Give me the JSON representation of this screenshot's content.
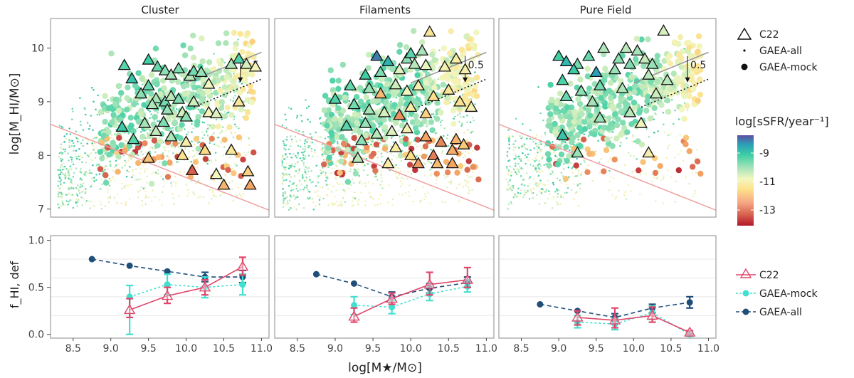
{
  "chart_data": [
    {
      "type": "scatter",
      "panel_titles": [
        "Cluster",
        "Filaments",
        "Pure Field"
      ],
      "xlabel": "log[M★/M⊙]",
      "ylabel": "log[M_HI/M⊙]",
      "xlim": [
        8.2,
        11.1
      ],
      "ylim": [
        6.85,
        10.55
      ],
      "xticks": [
        "8.5",
        "9.0",
        "9.5",
        "10.0",
        "10.5",
        "11.0"
      ],
      "yticks": [
        "7",
        "8",
        "9",
        "10"
      ],
      "annotation": "0.5",
      "ref_lines": {
        "grey_main_sequence": {
          "x1": 10.0,
          "y1": 9.35,
          "x2": 11.0,
          "y2": 9.92
        },
        "dotted_offset": {
          "x1": 10.1,
          "y1": 8.9,
          "x2": 11.0,
          "y2": 9.42
        },
        "red_threshold": {
          "x1": 8.2,
          "y1": 8.58,
          "x2": 11.1,
          "y2": 6.98
        }
      },
      "colorbar": {
        "label": "log[sSFR/year⁻¹]",
        "ticks": [
          "-9",
          "-11",
          "-13"
        ],
        "range": [
          -14.2,
          -7.9
        ]
      },
      "legend": [
        "C22",
        "GAEA-all",
        "GAEA-mock"
      ],
      "c22_points": [
        [
          [
            9.18,
            9.68,
            -9.8
          ],
          [
            9.28,
            9.43,
            -9.4
          ],
          [
            9.5,
            9.78,
            -9.6
          ],
          [
            9.62,
            9.65,
            -9.9
          ],
          [
            9.72,
            9.58,
            -10.2
          ],
          [
            9.8,
            9.5,
            -10.4
          ],
          [
            9.9,
            9.62,
            -10.1
          ],
          [
            10.05,
            9.48,
            -10.6
          ],
          [
            10.1,
            9.57,
            -10.0
          ],
          [
            10.2,
            9.55,
            -10.3
          ],
          [
            10.6,
            9.7,
            -10.5
          ],
          [
            10.7,
            9.8,
            -9.7
          ],
          [
            10.8,
            9.7,
            -10.9
          ],
          [
            10.92,
            9.65,
            -11.3
          ],
          [
            10.3,
            9.33,
            -11.2
          ],
          [
            9.5,
            9.3,
            -9.9
          ],
          [
            9.4,
            9.15,
            -10.2
          ],
          [
            9.6,
            9.06,
            -10.4
          ],
          [
            9.72,
            9.0,
            -10.0
          ],
          [
            9.8,
            9.1,
            -10.6
          ],
          [
            9.9,
            9.05,
            -10.1
          ],
          [
            10.1,
            9.0,
            -10.8
          ],
          [
            9.55,
            8.95,
            -10.5
          ],
          [
            9.75,
            8.85,
            -10.3
          ],
          [
            9.95,
            8.8,
            -10.9
          ],
          [
            10.0,
            8.72,
            -10.2
          ],
          [
            9.15,
            8.53,
            -9.5
          ],
          [
            9.3,
            8.3,
            -9.8
          ],
          [
            9.45,
            8.6,
            -10.4
          ],
          [
            9.6,
            8.45,
            -10.7
          ],
          [
            9.7,
            8.62,
            -10.1
          ],
          [
            9.8,
            8.35,
            -10.5
          ],
          [
            10.3,
            8.8,
            -11.3
          ],
          [
            10.4,
            8.78,
            -11.0
          ],
          [
            10.7,
            9.0,
            -11.8
          ],
          [
            10.0,
            8.25,
            -11.6
          ],
          [
            10.25,
            8.1,
            -12.1
          ],
          [
            9.95,
            8.0,
            -11.9
          ],
          [
            9.5,
            7.95,
            -12.4
          ],
          [
            10.08,
            7.72,
            -13.5
          ],
          [
            10.4,
            7.65,
            -11.2
          ],
          [
            10.5,
            7.45,
            -12.6
          ],
          [
            10.82,
            7.7,
            -12.2
          ],
          [
            10.85,
            7.45,
            -12.8
          ],
          [
            10.6,
            8.1,
            -11.8
          ]
        ],
        [
          [
            9.55,
            9.85,
            -8.4
          ],
          [
            9.7,
            9.75,
            -9.1
          ],
          [
            9.95,
            9.8,
            -10.2
          ],
          [
            10.0,
            9.9,
            -9.8
          ],
          [
            10.15,
            9.95,
            -10.4
          ],
          [
            10.25,
            10.3,
            -11.8
          ],
          [
            9.4,
            9.5,
            -9.6
          ],
          [
            9.6,
            9.55,
            -10.1
          ],
          [
            9.85,
            9.6,
            -11.0
          ],
          [
            10.05,
            9.7,
            -10.6
          ],
          [
            10.2,
            9.68,
            -11.1
          ],
          [
            10.45,
            9.65,
            -11.4
          ],
          [
            10.6,
            9.8,
            -11.6
          ],
          [
            10.72,
            9.6,
            -11.5
          ],
          [
            9.2,
            9.3,
            -9.9
          ],
          [
            9.45,
            9.25,
            -10.3
          ],
          [
            9.6,
            9.15,
            -12.5
          ],
          [
            9.8,
            9.32,
            -10.8
          ],
          [
            9.95,
            9.2,
            -11.2
          ],
          [
            10.1,
            9.3,
            -11.5
          ],
          [
            10.3,
            9.1,
            -12.0
          ],
          [
            10.5,
            9.22,
            -11.8
          ],
          [
            9.0,
            9.05,
            -9.7
          ],
          [
            9.25,
            8.95,
            -10.0
          ],
          [
            9.45,
            8.85,
            -10.4
          ],
          [
            9.65,
            8.8,
            -10.9
          ],
          [
            9.85,
            8.75,
            -13.0
          ],
          [
            10.0,
            8.9,
            -11.6
          ],
          [
            10.2,
            8.78,
            -12.2
          ],
          [
            10.65,
            9.0,
            -11.9
          ],
          [
            10.8,
            8.9,
            -11.4
          ],
          [
            9.15,
            8.55,
            -9.8
          ],
          [
            9.4,
            8.6,
            -10.3
          ],
          [
            9.55,
            8.4,
            -10.6
          ],
          [
            9.75,
            8.45,
            -11.0
          ],
          [
            9.95,
            8.5,
            -11.4
          ],
          [
            10.2,
            8.35,
            -12.8
          ],
          [
            10.4,
            8.25,
            -13.1
          ],
          [
            10.6,
            8.3,
            -12.6
          ],
          [
            9.35,
            8.28,
            -10.2
          ],
          [
            9.8,
            8.15,
            -11.7
          ],
          [
            10.0,
            8.0,
            -12.0
          ],
          [
            10.3,
            8.0,
            -13.2
          ],
          [
            10.55,
            8.1,
            -12.7
          ],
          [
            10.7,
            8.2,
            -12.3
          ],
          [
            9.7,
            7.85,
            -11.6
          ],
          [
            10.1,
            7.85,
            -12.9
          ],
          [
            10.35,
            7.85,
            -12.5
          ],
          [
            10.55,
            7.85,
            -12.8
          ],
          [
            9.3,
            7.95,
            -10.6
          ]
        ],
        [
          [
            9.0,
            9.85,
            -9.6
          ],
          [
            9.1,
            9.75,
            -9.2
          ],
          [
            9.25,
            9.7,
            -10.0
          ],
          [
            9.4,
            9.85,
            -9.9
          ],
          [
            9.6,
            10.0,
            -10.5
          ],
          [
            9.8,
            9.8,
            -10.2
          ],
          [
            9.9,
            10.0,
            -10.6
          ],
          [
            10.05,
            9.95,
            -10.4
          ],
          [
            10.15,
            9.8,
            -10.7
          ],
          [
            10.25,
            9.7,
            -10.3
          ],
          [
            10.4,
            10.32,
            -10.9
          ],
          [
            9.05,
            9.4,
            -9.7
          ],
          [
            9.2,
            9.6,
            -9.5
          ],
          [
            9.5,
            9.55,
            -8.8
          ],
          [
            9.75,
            9.6,
            -10.3
          ],
          [
            9.95,
            9.7,
            -10.1
          ],
          [
            10.2,
            9.5,
            -10.6
          ],
          [
            9.1,
            9.1,
            -9.9
          ],
          [
            9.3,
            9.2,
            -10.2
          ],
          [
            9.45,
            9.0,
            -10.4
          ],
          [
            9.55,
            9.3,
            -10.0
          ],
          [
            9.85,
            9.25,
            -10.5
          ],
          [
            10.3,
            9.15,
            -10.8
          ],
          [
            10.45,
            9.4,
            -10.6
          ],
          [
            9.55,
            8.7,
            -10.3
          ],
          [
            9.95,
            8.8,
            -10.6
          ],
          [
            10.1,
            8.6,
            -11.2
          ],
          [
            9.05,
            8.38,
            -9.4
          ],
          [
            9.25,
            8.05,
            -10.3
          ],
          [
            10.2,
            8.05,
            -11.5
          ]
        ]
      ],
      "legend_text": {
        "c22": "C22",
        "all": "GAEA-all",
        "mock": "GAEA-mock"
      }
    },
    {
      "type": "line",
      "ylabel": "f_HI, def",
      "ylim": [
        -0.04,
        1.05
      ],
      "yticks": [
        "0.0",
        "0.5",
        "1.0"
      ],
      "xticks": [
        "8.5",
        "9.0",
        "9.5",
        "10.0",
        "10.5",
        "11.0"
      ],
      "legend": [
        "C22",
        "GAEA-mock",
        "GAEA-all"
      ],
      "legend_text": {
        "c22": "C22",
        "mock": "GAEA-mock",
        "all": "GAEA-all"
      },
      "panels": [
        {
          "name": "Cluster",
          "series": [
            {
              "name": "GAEA-all",
              "color": "#1f4e79",
              "points": [
                [
                  8.75,
                  0.8,
                  null,
                  null
                ],
                [
                  9.25,
                  0.73,
                  null,
                  null
                ],
                [
                  9.75,
                  0.67,
                  null,
                  null
                ],
                [
                  10.25,
                  0.61,
                  0.56,
                  0.66
                ],
                [
                  10.75,
                  0.61,
                  0.55,
                  0.68
                ]
              ]
            },
            {
              "name": "GAEA-mock",
              "color": "#40e0d0",
              "points": [
                [
                  9.25,
                  0.4,
                  0.0,
                  0.52
                ],
                [
                  9.75,
                  0.53,
                  0.42,
                  0.64
                ],
                [
                  10.25,
                  0.5,
                  0.39,
                  0.61
                ],
                [
                  10.75,
                  0.53,
                  0.42,
                  0.64
                ]
              ]
            },
            {
              "name": "C22",
              "color": "#e0466a",
              "points": [
                [
                  9.25,
                  0.26,
                  0.18,
                  0.38
                ],
                [
                  9.75,
                  0.41,
                  0.33,
                  0.5
                ],
                [
                  10.25,
                  0.5,
                  0.42,
                  0.58
                ],
                [
                  10.75,
                  0.72,
                  0.63,
                  0.82
                ]
              ]
            }
          ]
        },
        {
          "name": "Filaments",
          "series": [
            {
              "name": "GAEA-all",
              "color": "#1f4e79",
              "points": [
                [
                  8.75,
                  0.64,
                  null,
                  null
                ],
                [
                  9.25,
                  0.54,
                  null,
                  null
                ],
                [
                  9.75,
                  0.4,
                  0.36,
                  0.45
                ],
                [
                  10.25,
                  0.49,
                  0.44,
                  0.54
                ],
                [
                  10.75,
                  0.55,
                  0.5,
                  0.61
                ]
              ]
            },
            {
              "name": "GAEA-mock",
              "color": "#40e0d0",
              "points": [
                [
                  9.25,
                  0.31,
                  0.21,
                  0.4
                ],
                [
                  9.75,
                  0.29,
                  0.22,
                  0.36
                ],
                [
                  10.25,
                  0.43,
                  0.36,
                  0.5
                ],
                [
                  10.75,
                  0.51,
                  0.45,
                  0.58
                ]
              ]
            },
            {
              "name": "C22",
              "color": "#e0466a",
              "points": [
                [
                  9.25,
                  0.19,
                  0.13,
                  0.28
                ],
                [
                  9.75,
                  0.38,
                  0.32,
                  0.44
                ],
                [
                  10.25,
                  0.53,
                  0.42,
                  0.66
                ],
                [
                  10.75,
                  0.58,
                  0.5,
                  0.71
                ]
              ]
            }
          ]
        },
        {
          "name": "Pure Field",
          "series": [
            {
              "name": "GAEA-all",
              "color": "#1f4e79",
              "points": [
                [
                  8.75,
                  0.32,
                  null,
                  null
                ],
                [
                  9.25,
                  0.25,
                  null,
                  null
                ],
                [
                  9.75,
                  0.18,
                  0.14,
                  0.22
                ],
                [
                  10.25,
                  0.28,
                  0.23,
                  0.32
                ],
                [
                  10.75,
                  0.34,
                  0.28,
                  0.4
                ]
              ]
            },
            {
              "name": "GAEA-mock",
              "color": "#40e0d0",
              "points": [
                [
                  9.25,
                  0.13,
                  0.07,
                  0.2
                ],
                [
                  9.75,
                  0.11,
                  0.05,
                  0.17
                ],
                [
                  10.25,
                  0.23,
                  0.16,
                  0.3
                ],
                [
                  10.75,
                  0.0,
                  -0.02,
                  0.02
                ]
              ]
            },
            {
              "name": "C22",
              "color": "#e0466a",
              "points": [
                [
                  9.25,
                  0.18,
                  0.1,
                  0.25
                ],
                [
                  9.75,
                  0.15,
                  0.07,
                  0.28
                ],
                [
                  10.25,
                  0.2,
                  0.13,
                  0.29
                ],
                [
                  10.75,
                  0.02,
                  0.0,
                  0.04
                ]
              ]
            }
          ]
        }
      ]
    }
  ]
}
